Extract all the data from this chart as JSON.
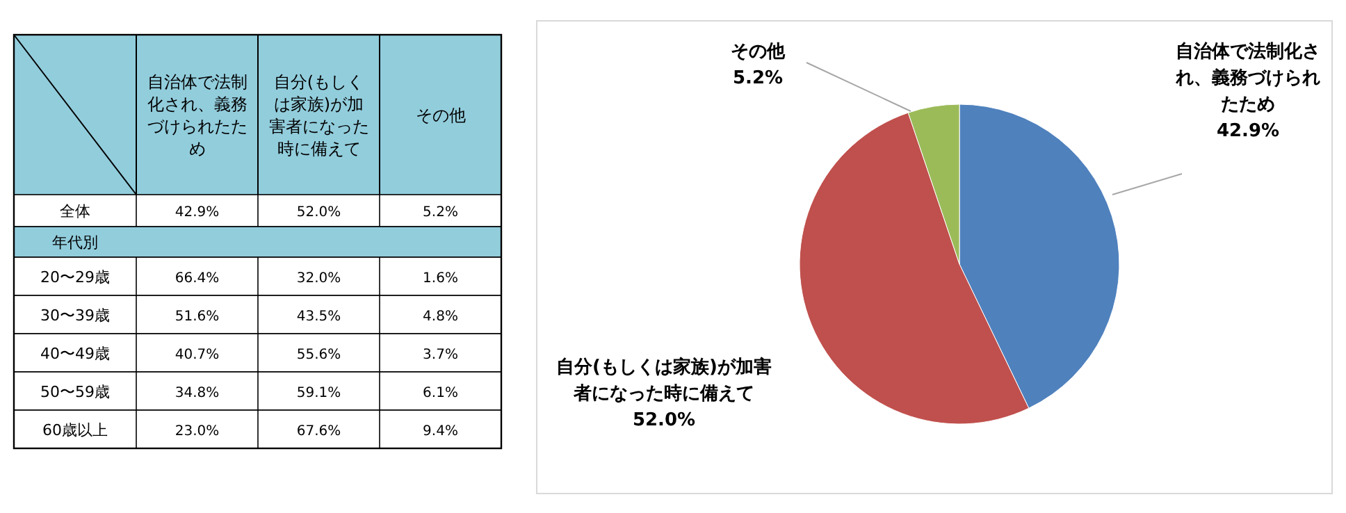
{
  "chart_data": [
    {
      "type": "heatmap",
      "categories": [
        "自治体で法制化され、義務づけられたため",
        "自分(もしくは家族)が加害者になった時に備えて",
        "その他"
      ],
      "y_categories": [
        "全体",
        "年代別",
        "20〜29歳",
        "30〜39歳",
        "40〜49歳",
        "50〜59歳",
        "60歳以上"
      ],
      "cells": [
        [
          42.9,
          52.0,
          5.2
        ],
        [
          null,
          null,
          null
        ],
        [
          66.4,
          32.0,
          1.6
        ],
        [
          51.6,
          43.5,
          4.8
        ],
        [
          40.7,
          55.6,
          3.7
        ],
        [
          34.8,
          59.1,
          6.1
        ],
        [
          23.0,
          67.6,
          9.4
        ]
      ],
      "cell_labels": [
        [
          "42.9%",
          "52.0%",
          "5.2%"
        ],
        [
          null,
          null,
          null
        ],
        [
          "66.4%",
          "32.0%",
          "1.6%"
        ],
        [
          "51.6%",
          "43.5%",
          "4.8%"
        ],
        [
          "40.7%",
          "55.6%",
          "3.7%"
        ],
        [
          "34.8%",
          "59.1%",
          "6.1%"
        ],
        [
          "23.0%",
          "67.6%",
          "9.4%"
        ]
      ]
    },
    {
      "type": "pie",
      "categories": [
        "自治体で法制化され、義務づけられたため",
        "自分(もしくは家族)が加害者になった時に備えて",
        "その他"
      ],
      "values": [
        42.9,
        52.0,
        5.2
      ],
      "colors": [
        "#4f81bd",
        "#c0504d",
        "#9bbb59"
      ],
      "value_labels": [
        "42.9%",
        "52.0%",
        "5.2%"
      ]
    }
  ]
}
